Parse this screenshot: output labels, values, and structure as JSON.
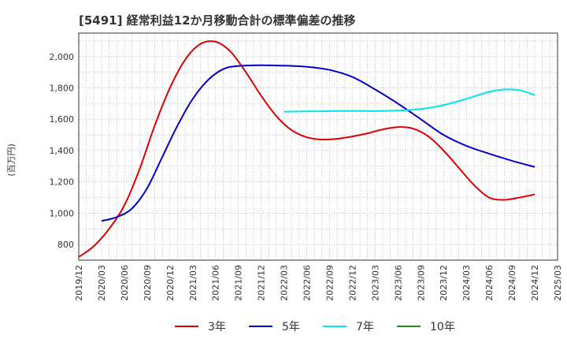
{
  "chart_data": {
    "type": "line",
    "title": "[5491]  経常利益12か月移動合計の標準偏差の推移",
    "xlabel": "",
    "ylabel": "(百万円)",
    "ylim": [
      700,
      2150
    ],
    "yticks": [
      800,
      1000,
      1200,
      1400,
      1600,
      1800,
      2000
    ],
    "ytick_labels": [
      "800",
      "1,000",
      "1,200",
      "1,400",
      "1,600",
      "1,800",
      "2,000"
    ],
    "xticks": [
      "2019/12",
      "2020/03",
      "2020/06",
      "2020/09",
      "2020/12",
      "2021/03",
      "2021/06",
      "2021/09",
      "2021/12",
      "2022/03",
      "2022/06",
      "2022/09",
      "2022/12",
      "2023/03",
      "2023/06",
      "2023/09",
      "2023/12",
      "2024/03",
      "2024/06",
      "2024/09",
      "2024/12",
      "2025/03"
    ],
    "grid": true,
    "legend_position": "bottom",
    "series": [
      {
        "name": "3年",
        "color": "#dd0000",
        "points": [
          [
            "2019/12",
            720
          ],
          [
            "2020/02",
            790
          ],
          [
            "2020/04",
            900
          ],
          [
            "2020/06",
            1050
          ],
          [
            "2020/08",
            1280
          ],
          [
            "2020/10",
            1560
          ],
          [
            "2020/12",
            1800
          ],
          [
            "2021/02",
            1980
          ],
          [
            "2021/04",
            2080
          ],
          [
            "2021/06",
            2095
          ],
          [
            "2021/08",
            2030
          ],
          [
            "2021/10",
            1900
          ],
          [
            "2021/12",
            1750
          ],
          [
            "2022/02",
            1620
          ],
          [
            "2022/04",
            1530
          ],
          [
            "2022/06",
            1485
          ],
          [
            "2022/08",
            1470
          ],
          [
            "2022/10",
            1475
          ],
          [
            "2022/12",
            1490
          ],
          [
            "2023/02",
            1510
          ],
          [
            "2023/04",
            1535
          ],
          [
            "2023/06",
            1550
          ],
          [
            "2023/08",
            1540
          ],
          [
            "2023/10",
            1490
          ],
          [
            "2023/12",
            1400
          ],
          [
            "2024/02",
            1290
          ],
          [
            "2024/04",
            1180
          ],
          [
            "2024/06",
            1100
          ],
          [
            "2024/08",
            1085
          ],
          [
            "2024/10",
            1100
          ],
          [
            "2024/12",
            1120
          ]
        ]
      },
      {
        "name": "5年",
        "color": "#0000cc",
        "points": [
          [
            "2020/03",
            950
          ],
          [
            "2020/05",
            975
          ],
          [
            "2020/07",
            1030
          ],
          [
            "2020/09",
            1160
          ],
          [
            "2020/11",
            1360
          ],
          [
            "2021/01",
            1560
          ],
          [
            "2021/03",
            1730
          ],
          [
            "2021/05",
            1850
          ],
          [
            "2021/07",
            1920
          ],
          [
            "2021/09",
            1940
          ],
          [
            "2021/12",
            1945
          ],
          [
            "2022/03",
            1942
          ],
          [
            "2022/06",
            1935
          ],
          [
            "2022/09",
            1915
          ],
          [
            "2022/12",
            1870
          ],
          [
            "2023/03",
            1790
          ],
          [
            "2023/06",
            1700
          ],
          [
            "2023/09",
            1600
          ],
          [
            "2023/12",
            1500
          ],
          [
            "2024/03",
            1430
          ],
          [
            "2024/06",
            1380
          ],
          [
            "2024/09",
            1335
          ],
          [
            "2024/12",
            1295
          ]
        ]
      },
      {
        "name": "7年",
        "color": "#00e5ee",
        "points": [
          [
            "2022/03",
            1648
          ],
          [
            "2022/06",
            1650
          ],
          [
            "2022/09",
            1652
          ],
          [
            "2022/12",
            1653
          ],
          [
            "2023/03",
            1652
          ],
          [
            "2023/06",
            1655
          ],
          [
            "2023/09",
            1665
          ],
          [
            "2023/12",
            1690
          ],
          [
            "2024/03",
            1730
          ],
          [
            "2024/06",
            1775
          ],
          [
            "2024/08",
            1790
          ],
          [
            "2024/10",
            1785
          ],
          [
            "2024/12",
            1755
          ]
        ]
      },
      {
        "name": "10年",
        "color": "#228b22",
        "points": []
      }
    ]
  }
}
